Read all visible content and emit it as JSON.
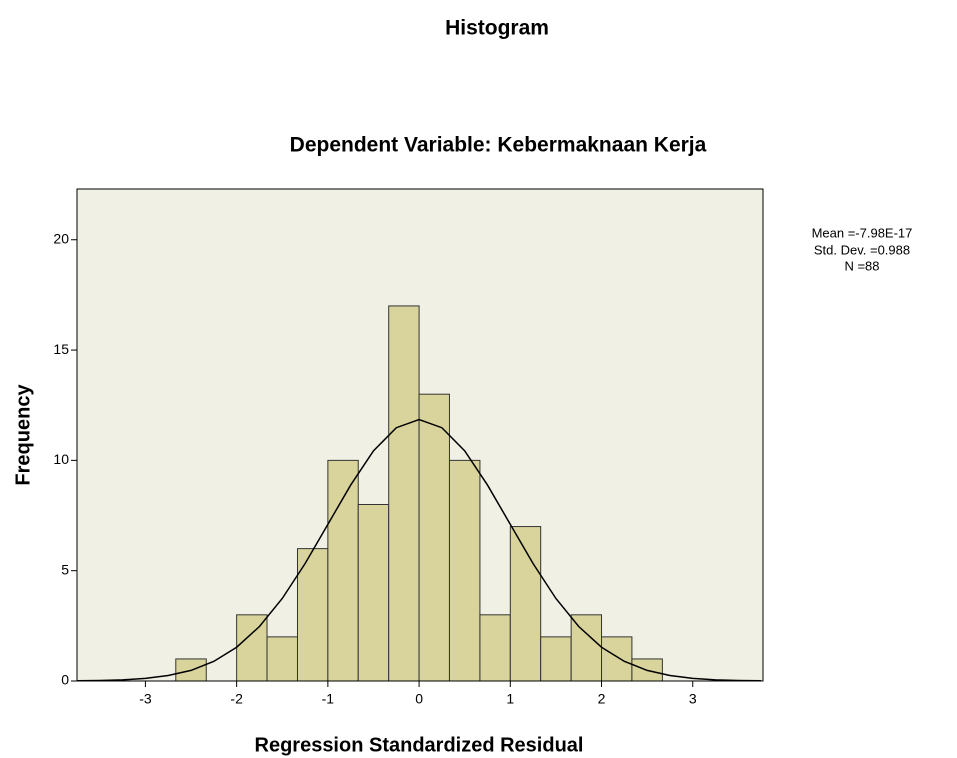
{
  "chart_data": {
    "type": "histogram",
    "title": "Histogram",
    "subtitle": "Dependent Variable: Kebermaknaan Kerja",
    "x_label": "Regression Standardized Residual",
    "y_label": "Frequency",
    "bins": [
      -2.667,
      -2.333,
      -2,
      -1.667,
      -1.333,
      -1,
      -0.667,
      -0.333,
      0,
      0.333,
      0.667,
      1,
      1.333,
      1.667,
      2,
      2.333,
      2.667
    ],
    "values": [
      1,
      0,
      3,
      2,
      6,
      10,
      8,
      17,
      13,
      10,
      3,
      7,
      2,
      3,
      2,
      1
    ],
    "color": "#d9d49b",
    "curve": {
      "x": [
        -3.75,
        -3.5,
        -3.25,
        -3,
        -2.75,
        -2.5,
        -2.25,
        -2,
        -1.75,
        -1.5,
        -1.25,
        -1,
        -0.75,
        -0.5,
        -0.25,
        0,
        0.25,
        0.5,
        0.75,
        1,
        1.25,
        1.5,
        1.75,
        2,
        2.25,
        2.5,
        2.75,
        3,
        3.25,
        3.5,
        3.75
      ],
      "y": [
        0.01,
        0.02,
        0.05,
        0.12,
        0.25,
        0.48,
        0.89,
        1.53,
        2.47,
        3.74,
        5.32,
        7.1,
        8.88,
        10.43,
        11.48,
        11.85,
        11.48,
        10.43,
        8.88,
        7.1,
        5.32,
        3.74,
        2.47,
        1.53,
        0.89,
        0.48,
        0.25,
        0.12,
        0.05,
        0.02,
        0.01
      ]
    },
    "annotations": [
      "Mean =-7.98E-17",
      "Std. Dev. =0.988",
      "N =88"
    ],
    "xlim": [
      -3.75,
      3.77
    ],
    "ylim": [
      0,
      22.3
    ],
    "xticks": [
      -3,
      -2,
      -1,
      0,
      1,
      2,
      3
    ],
    "yticks": [
      0,
      5,
      10,
      15,
      20
    ]
  }
}
